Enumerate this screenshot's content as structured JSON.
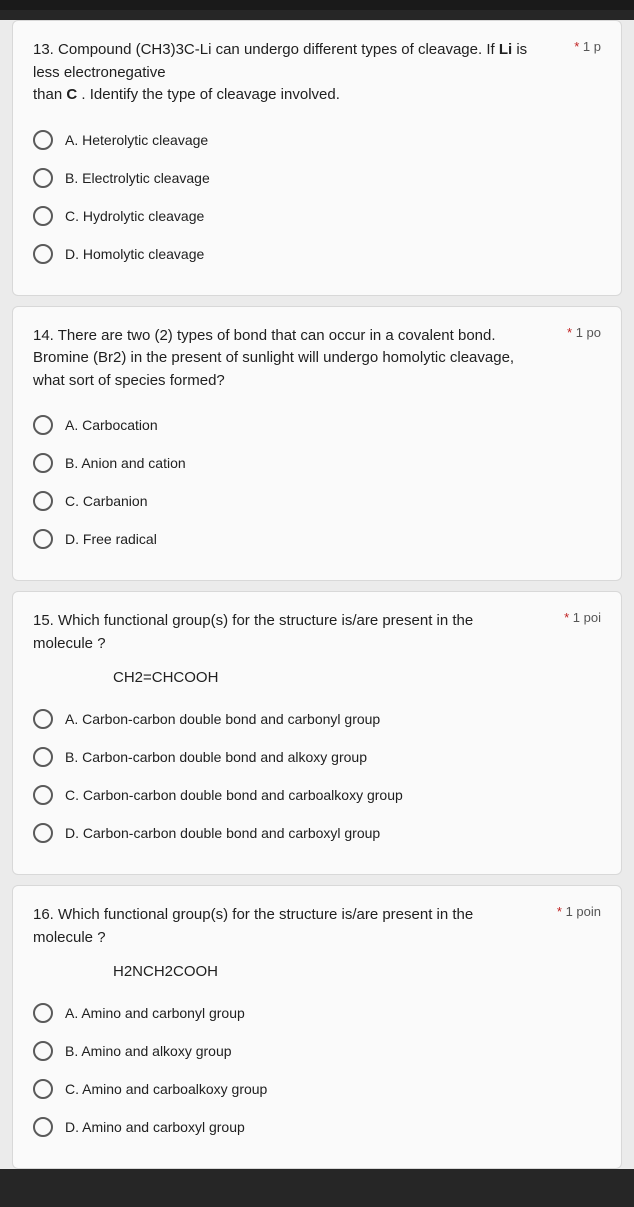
{
  "questions": [
    {
      "number": "13.",
      "text": "Compound (CH3)3C-Li can undergo different types of cleavage. If Li is less electronegative\nthan C . Identify the type of cleavage involved.",
      "points": "1 p",
      "formula": "",
      "options": [
        "A. Heterolytic cleavage",
        "B. Electrolytic cleavage",
        "C. Hydrolytic cleavage",
        "D. Homolytic cleavage"
      ]
    },
    {
      "number": "14.",
      "text": "There are two (2) types of bond that can occur in a covalent bond. Bromine (Br2) in the present of sunlight will undergo homolytic cleavage, what sort of species formed?",
      "points": "1 po",
      "formula": "",
      "options": [
        "A. Carbocation",
        "B. Anion and cation",
        "C. Carbanion",
        "D. Free radical"
      ]
    },
    {
      "number": "15.",
      "text": "Which functional group(s) for the structure is/are present in the molecule ?",
      "points": "1 poi",
      "formula": "CH2=CHCOOH",
      "options": [
        "A. Carbon-carbon double bond and carbonyl group",
        "B. Carbon-carbon double bond and alkoxy group",
        "C. Carbon-carbon double bond and carboalkoxy group",
        "D. Carbon-carbon double bond and carboxyl group"
      ]
    },
    {
      "number": "16.",
      "text": "Which functional group(s) for the structure is/are present in the molecule ?",
      "points": "1 poin",
      "formula": "H2NCH2COOH",
      "options": [
        "A. Amino and carbonyl group",
        "B. Amino and alkoxy group",
        "C. Amino and carboalkoxy group",
        "D. Amino and carboxyl group"
      ]
    }
  ]
}
